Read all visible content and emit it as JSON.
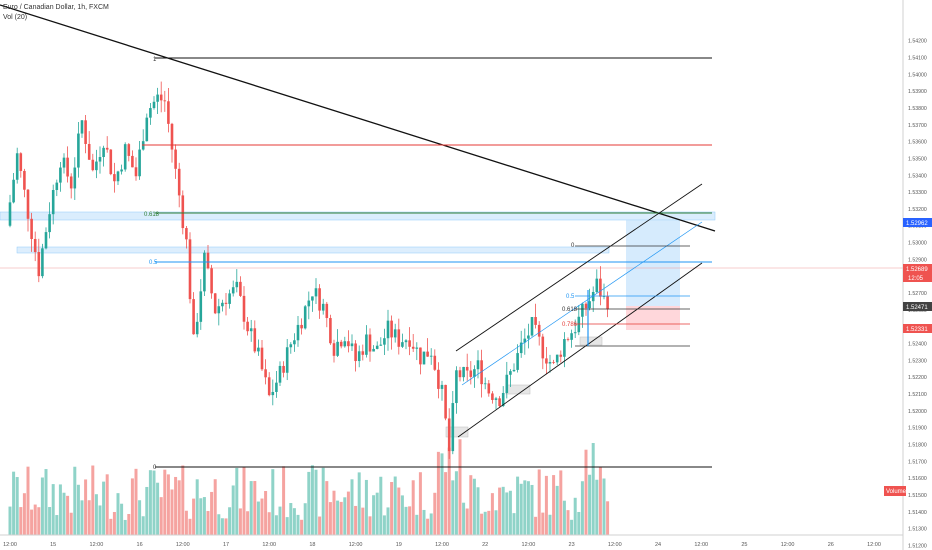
{
  "header": {
    "symbol_line": "Euro / Canadian Dollar, 1h, FXCM",
    "volume_line": "Vol (20)"
  },
  "colors": {
    "up": "#26a69a",
    "down": "#ef5350",
    "up_volume": "#8fd3c8",
    "down_volume": "#f5a3a0",
    "axis_text": "#555555",
    "fib_blue": "#2196f3",
    "fib_red": "#e53935",
    "fib_green": "#2e7d32",
    "last_price_bg": "#ef5350",
    "label_bg": "#2962ff"
  },
  "chart_data": {
    "type": "candlestick",
    "title": "Euro / Canadian Dollar, 1h, FXCM",
    "ylim": [
      1.5125,
      1.544
    ],
    "y_ticks": [
      "1.54200",
      "1.54100",
      "1.54000",
      "1.53900",
      "1.53800",
      "1.53700",
      "1.53600",
      "1.53500",
      "1.53400",
      "1.53300",
      "1.53200",
      "1.53100",
      "1.53000",
      "1.52900",
      "1.52800",
      "1.52700",
      "1.52600",
      "1.52500",
      "1.52400",
      "1.52300",
      "1.52200",
      "1.52100",
      "1.52000",
      "1.51900",
      "1.51800",
      "1.51700",
      "1.51600",
      "1.51500",
      "1.51400",
      "1.51300",
      "1.51200"
    ],
    "x_labels": [
      {
        "t": 0,
        "label": "12:00"
      },
      {
        "t": 12,
        "label": "15"
      },
      {
        "t": 24,
        "label": "12:00"
      },
      {
        "t": 36,
        "label": "16"
      },
      {
        "t": 48,
        "label": "12:00"
      },
      {
        "t": 60,
        "label": "17"
      },
      {
        "t": 72,
        "label": "12:00"
      },
      {
        "t": 84,
        "label": "18"
      },
      {
        "t": 96,
        "label": "12:00"
      },
      {
        "t": 108,
        "label": "19"
      },
      {
        "t": 120,
        "label": "12:00"
      },
      {
        "t": 132,
        "label": "22"
      },
      {
        "t": 144,
        "label": "12:00"
      },
      {
        "t": 156,
        "label": "23"
      },
      {
        "t": 168,
        "label": "12:00"
      },
      {
        "t": 180,
        "label": "24"
      },
      {
        "t": 192,
        "label": "12:00"
      },
      {
        "t": 204,
        "label": "25"
      },
      {
        "t": 216,
        "label": "12:00"
      },
      {
        "t": 228,
        "label": "26"
      },
      {
        "t": 240,
        "label": "12:00"
      }
    ],
    "price_path": [
      [
        0,
        1.531
      ],
      [
        3,
        1.5352
      ],
      [
        6,
        1.5318
      ],
      [
        9,
        1.5284
      ],
      [
        12,
        1.532
      ],
      [
        15,
        1.535
      ],
      [
        18,
        1.5335
      ],
      [
        21,
        1.5372
      ],
      [
        24,
        1.5342
      ],
      [
        27,
        1.5362
      ],
      [
        30,
        1.5336
      ],
      [
        33,
        1.5355
      ],
      [
        36,
        1.534
      ],
      [
        39,
        1.5378
      ],
      [
        42,
        1.5386
      ],
      [
        44,
        1.5384
      ],
      [
        47,
        1.5342
      ],
      [
        50,
        1.53
      ],
      [
        52,
        1.524
      ],
      [
        55,
        1.529
      ],
      [
        58,
        1.526
      ],
      [
        61,
        1.5268
      ],
      [
        64,
        1.5272
      ],
      [
        67,
        1.525
      ],
      [
        70,
        1.5232
      ],
      [
        73,
        1.5208
      ],
      [
        76,
        1.5222
      ],
      [
        79,
        1.524
      ],
      [
        82,
        1.5255
      ],
      [
        85,
        1.5272
      ],
      [
        88,
        1.5262
      ],
      [
        91,
        1.5238
      ],
      [
        94,
        1.5246
      ],
      [
        97,
        1.523
      ],
      [
        100,
        1.5242
      ],
      [
        103,
        1.5236
      ],
      [
        106,
        1.5248
      ],
      [
        109,
        1.5242
      ],
      [
        112,
        1.5244
      ],
      [
        115,
        1.5232
      ],
      [
        118,
        1.5236
      ],
      [
        121,
        1.521
      ],
      [
        123,
        1.5176
      ],
      [
        125,
        1.5222
      ],
      [
        128,
        1.522
      ],
      [
        131,
        1.5226
      ],
      [
        134,
        1.5212
      ],
      [
        137,
        1.5208
      ],
      [
        140,
        1.5222
      ],
      [
        143,
        1.5238
      ],
      [
        146,
        1.525
      ],
      [
        149,
        1.5236
      ],
      [
        152,
        1.5226
      ],
      [
        155,
        1.5242
      ],
      [
        158,
        1.525
      ],
      [
        160,
        1.5258
      ],
      [
        162,
        1.5266
      ],
      [
        164,
        1.5275
      ],
      [
        166,
        1.5266
      ]
    ],
    "volume_max": 100,
    "last_price": 1.52689
  },
  "price_labels": {
    "current": "1.52689",
    "countdown": "12:05",
    "top_level": "1.52962",
    "mid_level": "1.52471",
    "low_level": "1.52331",
    "volume_tag": "Volume"
  },
  "fib_left": {
    "label_1": "1",
    "label_0618": "0.618",
    "label_05": "0.5",
    "label_0": "0"
  },
  "fib_right": {
    "label_0": "0",
    "label_05": "0.5",
    "label_0618": "0.618",
    "label_0786": "0.786"
  }
}
